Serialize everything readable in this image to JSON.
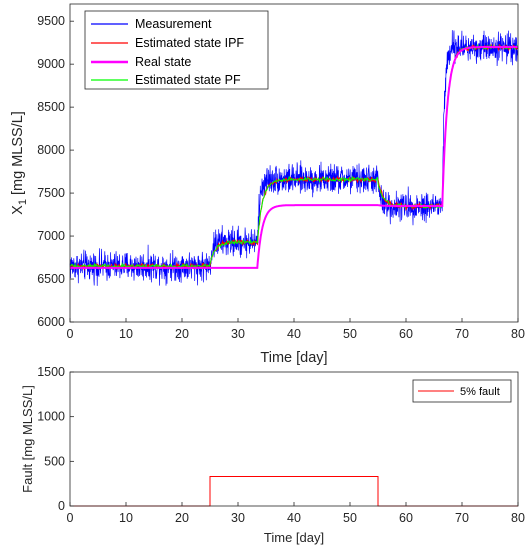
{
  "chart_data": [
    {
      "type": "line",
      "xlabel": "Time [day]",
      "ylabel_main": "X",
      "ylabel_sub": "1",
      "ylabel_unit": " [mg MLSS/L]",
      "xlim": [
        0,
        80
      ],
      "ylim": [
        6000,
        9700
      ],
      "xticks": [
        "0",
        "10",
        "20",
        "30",
        "40",
        "50",
        "60",
        "70",
        "80"
      ],
      "yticks": [
        "6000",
        "6500",
        "7000",
        "7500",
        "8000",
        "8500",
        "9000",
        "9500"
      ],
      "legend_position": "top-left",
      "grid": false,
      "series": [
        {
          "name": "Measurement",
          "color": "#0000ff",
          "noise_amplitude": 170,
          "segments": [
            {
              "t0": 0,
              "t1": 25,
              "level": 6650
            },
            {
              "t0": 25,
              "t1": 33.5,
              "level": 6930
            },
            {
              "t0": 33.5,
              "t1": 55,
              "level": 7660
            },
            {
              "t0": 55,
              "t1": 66.5,
              "level": 7350
            },
            {
              "t0": 66.5,
              "t1": 80,
              "level": 9200
            }
          ]
        },
        {
          "name": "Estimated state IPF",
          "color": "#ff0000",
          "noise_amplitude": 28,
          "segments": [
            {
              "t0": 0,
              "t1": 25,
              "level": 6650
            },
            {
              "t0": 25,
              "t1": 33.5,
              "level": 6930
            },
            {
              "t0": 33.5,
              "t1": 55,
              "level": 7660
            },
            {
              "t0": 55,
              "t1": 66.5,
              "level": 7350
            },
            {
              "t0": 66.5,
              "t1": 80,
              "level": 9200
            }
          ]
        },
        {
          "name": "Real state",
          "color": "#ff00ff",
          "noise_amplitude": 0,
          "segments": [
            {
              "t0": 0,
              "t1": 33.5,
              "level": 6630
            },
            {
              "t0": 33.5,
              "t1": 55,
              "level": 7360
            },
            {
              "t0": 55,
              "t1": 66.5,
              "level": 7350
            },
            {
              "t0": 66.5,
              "t1": 80,
              "level": 9200
            }
          ]
        },
        {
          "name": "Estimated state PF",
          "color": "#00ff00",
          "noise_amplitude": 22,
          "segments": [
            {
              "t0": 0,
              "t1": 25,
              "level": 6650
            },
            {
              "t0": 25,
              "t1": 33.5,
              "level": 6930
            },
            {
              "t0": 33.5,
              "t1": 55,
              "level": 7660
            },
            {
              "t0": 55,
              "t1": 66.5,
              "level": 7350
            },
            {
              "t0": 66.5,
              "t1": 80,
              "level": 9200
            }
          ]
        }
      ]
    },
    {
      "type": "line",
      "xlabel": "Time [day]",
      "ylabel": "Fault [mg MLSS/L]",
      "xlim": [
        0,
        80
      ],
      "ylim": [
        0,
        1500
      ],
      "xticks": [
        "0",
        "10",
        "20",
        "30",
        "40",
        "50",
        "60",
        "70",
        "80"
      ],
      "yticks": [
        "0",
        "500",
        "1000",
        "1500"
      ],
      "legend_position": "top-right",
      "grid": false,
      "series": [
        {
          "name": "5% fault",
          "color": "#ff0000",
          "x": [
            0,
            25,
            25,
            55,
            55,
            80
          ],
          "y": [
            0,
            0,
            330,
            330,
            0,
            0
          ]
        }
      ]
    }
  ]
}
